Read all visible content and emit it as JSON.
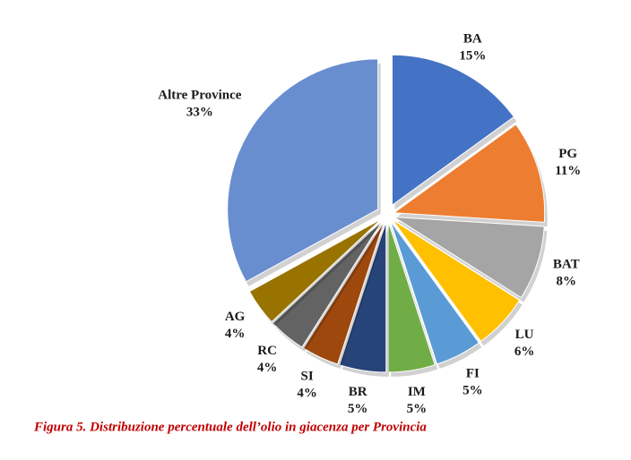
{
  "chart_data": {
    "type": "pie",
    "categories": [
      "BA",
      "PG",
      "BAT",
      "LU",
      "FI",
      "IM",
      "BR",
      "SI",
      "RC",
      "AG",
      "Altre Province"
    ],
    "values": [
      15,
      11,
      8,
      6,
      5,
      5,
      5,
      4,
      4,
      4,
      33
    ],
    "value_labels": [
      "15%",
      "11%",
      "8%",
      "6%",
      "5%",
      "5%",
      "5%",
      "4%",
      "4%",
      "4%",
      "33%"
    ],
    "colors": [
      "#4472c4",
      "#ed7d31",
      "#a5a5a5",
      "#ffc000",
      "#5b9bd5",
      "#70ad47",
      "#264478",
      "#9e480e",
      "#636363",
      "#997300",
      "#698ed0"
    ],
    "caption": "Figura 5. Distribuzione percentuale dell’olio in giacenza per Provincia"
  }
}
